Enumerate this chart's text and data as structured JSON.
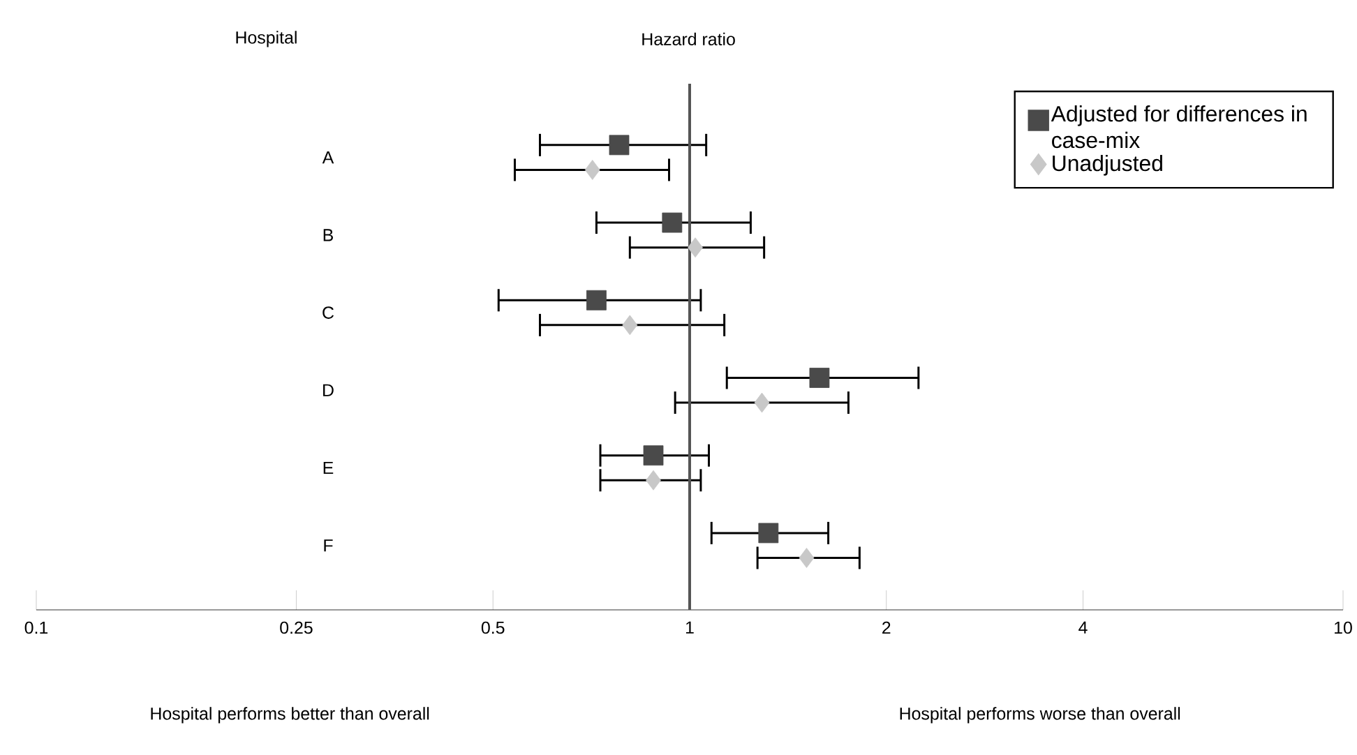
{
  "chart_data": {
    "type": "scatter",
    "orientation": "horizontal",
    "xlabel": "Hazard ratio",
    "ylabel": "Hospital",
    "categories": [
      "A",
      "B",
      "C",
      "D",
      "E",
      "F"
    ],
    "series": [
      {
        "name": "Adjusted for differences in case-mix",
        "color": "#4a4a4a",
        "marker": "square",
        "values": [
          0.78,
          0.94,
          0.72,
          1.58,
          0.88,
          1.32
        ],
        "errors": [
          [
            0.59,
            1.06
          ],
          [
            0.72,
            1.24
          ],
          [
            0.51,
            1.04
          ],
          [
            1.14,
            2.24
          ],
          [
            0.73,
            1.07
          ],
          [
            1.08,
            1.63
          ]
        ]
      },
      {
        "name": "Unadjusted",
        "color": "#c8c8c8",
        "marker": "diamond",
        "values": [
          0.71,
          1.02,
          0.81,
          1.29,
          0.88,
          1.51
        ],
        "errors": [
          [
            0.54,
            0.93
          ],
          [
            0.81,
            1.3
          ],
          [
            0.59,
            1.13
          ],
          [
            0.95,
            1.75
          ],
          [
            0.73,
            1.04
          ],
          [
            1.27,
            1.82
          ]
        ]
      }
    ],
    "log": "x",
    "xlim": [
      0.1,
      10
    ],
    "xticks": [
      0.1,
      0.25,
      0.5,
      1,
      2,
      4,
      10
    ],
    "ref_lines": [
      {
        "axis": "x",
        "value": 1
      }
    ],
    "legend": "top right",
    "grid": false,
    "annotations": [
      "Hospital performs better than overall",
      "Hospital performs worse than overall"
    ]
  }
}
